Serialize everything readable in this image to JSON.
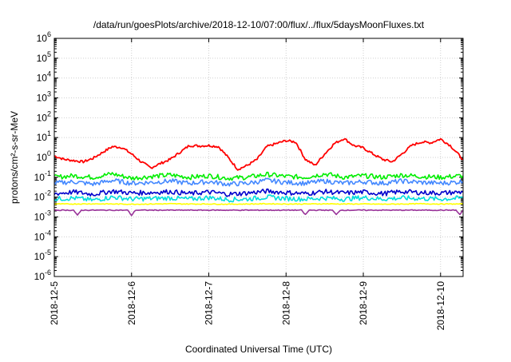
{
  "chart_data": {
    "type": "line",
    "title": "/data/run/goesPlots/archive/2018-12-10/07:00/flux/../flux/5daysMoonFluxes.txt",
    "xlabel": "Coordinated Universal Time (UTC)",
    "ylabel": "protons/cm²-s-sr-MeV",
    "y_scale": "log",
    "ylim_exp": [
      -6,
      6
    ],
    "y_ticks": [
      "10^-6",
      "10^-5",
      "10^-4",
      "10^-3",
      "10^-2",
      "10^-1",
      "10^0",
      "10^1",
      "10^2",
      "10^3",
      "10^4",
      "10^5",
      "10^6"
    ],
    "xlim": [
      "2018-12-05 00:00",
      "2018-12-10 07:00"
    ],
    "x_ticks": [
      "2018-12-5",
      "2018-12-6",
      "2018-12-7",
      "2018-12-8",
      "2018-12-9",
      "2018-12-10"
    ],
    "grid": true,
    "series": [
      {
        "color": "#ff0000",
        "x_days": [
          0,
          0.125,
          0.25,
          0.375,
          0.5,
          0.625,
          0.75,
          0.875,
          1,
          1.125,
          1.25,
          1.375,
          1.5,
          1.625,
          1.75,
          1.875,
          2,
          2.125,
          2.25,
          2.375,
          2.5,
          2.625,
          2.75,
          2.875,
          3,
          3.125,
          3.25,
          3.375,
          3.5,
          3.625,
          3.75,
          3.875,
          4,
          4.125,
          4.25,
          4.375,
          4.5,
          4.625,
          4.75,
          4.875,
          5,
          5.125,
          5.29
        ],
        "values": [
          1.2,
          0.8,
          0.7,
          0.6,
          0.9,
          1.8,
          3.5,
          3.2,
          1.5,
          0.6,
          0.3,
          0.5,
          0.8,
          1.8,
          4.0,
          3.8,
          4.0,
          3.5,
          1.0,
          0.25,
          0.4,
          0.8,
          3.5,
          5.0,
          7.0,
          6.0,
          0.8,
          0.4,
          1.5,
          5.0,
          9.0,
          4.0,
          3.0,
          1.5,
          0.8,
          0.6,
          1.5,
          4.0,
          6.0,
          5.5,
          8.5,
          4.0,
          0.8
        ]
      },
      {
        "color": "#00ee00",
        "x_days": [
          0,
          0.25,
          0.5,
          0.75,
          1,
          1.25,
          1.5,
          1.75,
          2,
          2.25,
          2.5,
          2.75,
          3,
          3.25,
          3.5,
          3.75,
          4,
          4.25,
          4.5,
          4.75,
          5,
          5.29
        ],
        "values": [
          0.1,
          0.12,
          0.1,
          0.15,
          0.09,
          0.11,
          0.13,
          0.1,
          0.12,
          0.09,
          0.1,
          0.14,
          0.11,
          0.1,
          0.15,
          0.1,
          0.12,
          0.1,
          0.13,
          0.11,
          0.1,
          0.12
        ]
      },
      {
        "color": "#4488ff",
        "x_days": [
          0,
          0.25,
          0.5,
          0.75,
          1,
          1.25,
          1.5,
          1.75,
          2,
          2.25,
          2.5,
          2.75,
          3,
          3.25,
          3.5,
          3.75,
          4,
          4.25,
          4.5,
          4.75,
          5,
          5.29
        ],
        "values": [
          0.05,
          0.06,
          0.045,
          0.07,
          0.05,
          0.055,
          0.065,
          0.05,
          0.06,
          0.045,
          0.05,
          0.07,
          0.055,
          0.05,
          0.065,
          0.05,
          0.06,
          0.05,
          0.065,
          0.055,
          0.05,
          0.06
        ]
      },
      {
        "color": "#00dddd",
        "x_days": [
          0,
          0.25,
          0.5,
          0.75,
          1,
          1.25,
          1.5,
          1.75,
          2,
          2.25,
          2.5,
          2.75,
          3,
          3.25,
          3.5,
          3.75,
          4,
          4.25,
          4.5,
          4.75,
          5,
          5.29
        ],
        "values": [
          0.008,
          0.009,
          0.007,
          0.01,
          0.008,
          0.0085,
          0.009,
          0.008,
          0.0095,
          0.0075,
          0.008,
          0.01,
          0.0085,
          0.008,
          0.009,
          0.008,
          0.0095,
          0.008,
          0.009,
          0.0085,
          0.008,
          0.009
        ]
      },
      {
        "color": "#0000cc",
        "x_days": [
          0,
          0.25,
          0.5,
          0.75,
          1,
          1.25,
          1.5,
          1.75,
          2,
          2.25,
          2.5,
          2.75,
          3,
          3.25,
          3.5,
          3.75,
          4,
          4.25,
          4.5,
          4.75,
          5,
          5.29
        ],
        "values": [
          0.015,
          0.018,
          0.014,
          0.02,
          0.016,
          0.017,
          0.019,
          0.015,
          0.018,
          0.014,
          0.016,
          0.02,
          0.017,
          0.015,
          0.019,
          0.016,
          0.018,
          0.015,
          0.019,
          0.017,
          0.016,
          0.018
        ]
      },
      {
        "color": "#ffff00",
        "x_days": [
          0,
          0.25,
          0.5,
          0.75,
          1,
          1.25,
          1.5,
          1.75,
          2,
          2.25,
          2.5,
          2.75,
          3,
          3.25,
          3.5,
          3.75,
          4,
          4.25,
          4.5,
          4.75,
          5,
          5.29
        ],
        "values": [
          0.0045,
          0.0045,
          0.0046,
          0.0045,
          0.0044,
          0.0045,
          0.0046,
          0.0045,
          0.0045,
          0.0044,
          0.0045,
          0.0046,
          0.0045,
          0.0045,
          0.0046,
          0.0045,
          0.0045,
          0.0044,
          0.0045,
          0.0046,
          0.0045,
          0.0045
        ]
      },
      {
        "color": "#993399",
        "x_days": [
          0,
          0.25,
          0.3,
          0.35,
          0.5,
          0.75,
          0.95,
          1.0,
          1.05,
          1.25,
          1.5,
          1.75,
          2,
          2.25,
          2.5,
          2.75,
          3,
          3.2,
          3.25,
          3.3,
          3.5,
          3.6,
          3.65,
          3.7,
          4,
          4.25,
          4.5,
          4.75,
          5,
          5.2,
          5.25,
          5.29
        ],
        "values": [
          0.0022,
          0.0022,
          0.0012,
          0.0022,
          0.0022,
          0.0022,
          0.0022,
          0.0012,
          0.0022,
          0.0022,
          0.0022,
          0.0022,
          0.0022,
          0.0022,
          0.0022,
          0.0022,
          0.0022,
          0.0022,
          0.0013,
          0.0022,
          0.0022,
          0.0022,
          0.0013,
          0.0022,
          0.0022,
          0.0022,
          0.0022,
          0.0022,
          0.0022,
          0.0022,
          0.0013,
          0.0022
        ]
      }
    ]
  }
}
